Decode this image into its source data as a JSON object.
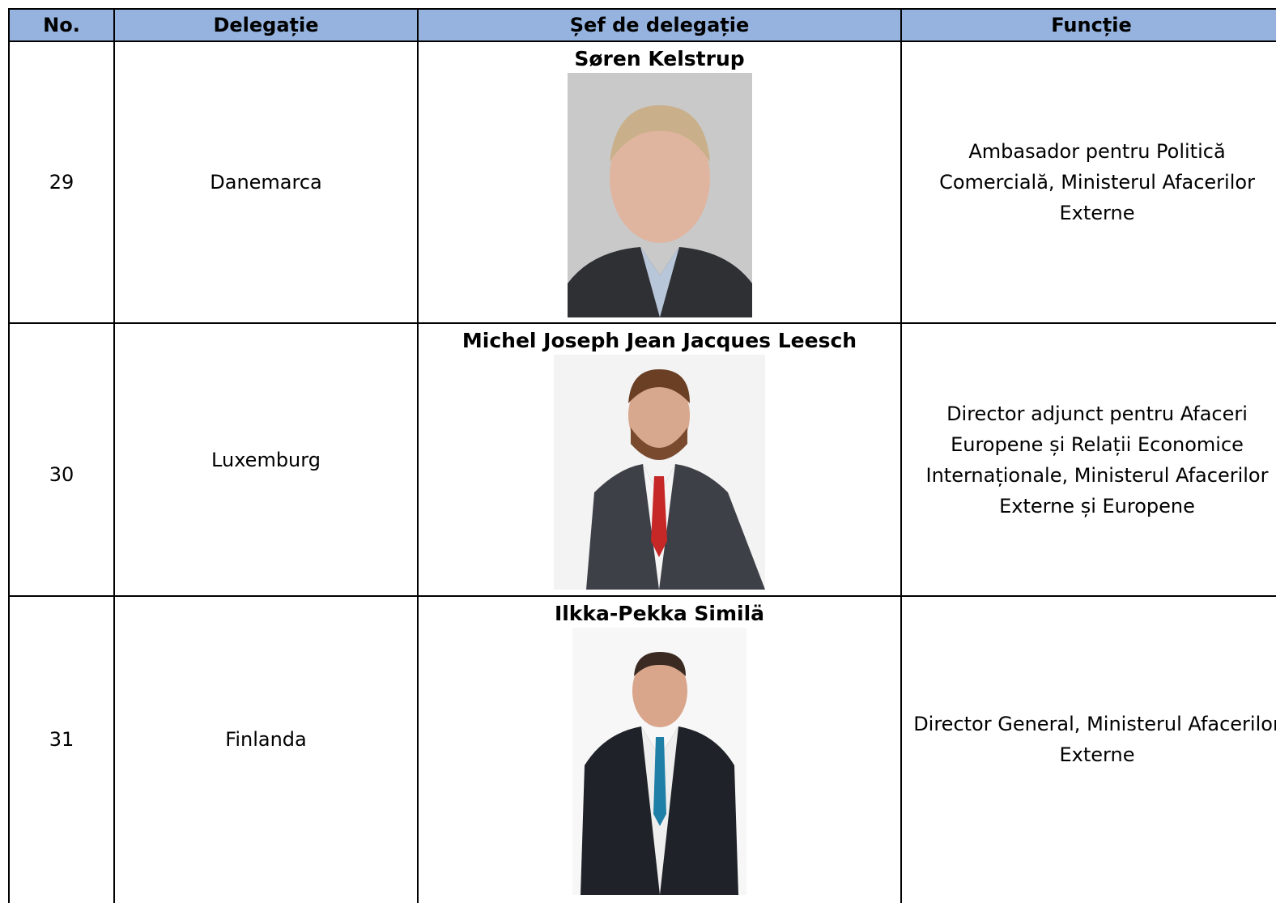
{
  "table": {
    "header": [
      "No.",
      "Delegație",
      "Șef de delegație",
      "Funcție"
    ],
    "rows": [
      {
        "no": "29",
        "delegation": "Danemarca",
        "head": "Søren Kelstrup",
        "function": "Ambasador pentru Politică Comercială, Ministerul Afacerilor Externe"
      },
      {
        "no": "30",
        "delegation": "Luxemburg",
        "head": "Michel Joseph Jean Jacques Leesch",
        "function": "Director adjunct pentru Afaceri Europene și Relații Economice Internaționale, Ministerul Afacerilor Externe și Europene"
      },
      {
        "no": "31",
        "delegation": "Finlanda",
        "head": "Ilkka-Pekka Similä",
        "function": "Director General, Ministerul Afacerilor Externe"
      }
    ]
  }
}
